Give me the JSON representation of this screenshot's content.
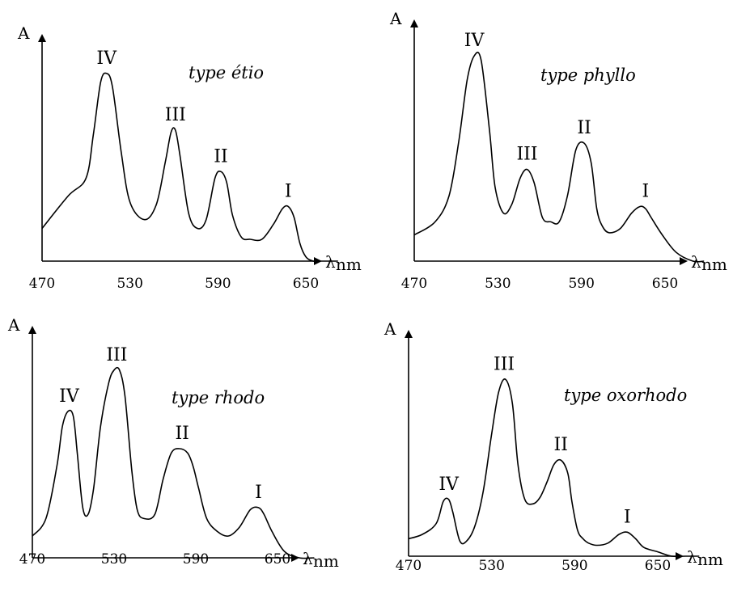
{
  "chart_data": [
    {
      "type": "line",
      "title": "type étio",
      "ylabel": "A",
      "xlabel": "λ",
      "xunit": "nm",
      "xticks": [
        "470",
        "530",
        "590",
        "650"
      ],
      "xlim": [
        470,
        672
      ],
      "ylim": [
        0,
        1
      ],
      "x": [
        470,
        488,
        500,
        505,
        510,
        514,
        518,
        524,
        530,
        540,
        548,
        554,
        558,
        561,
        564,
        570,
        576,
        582,
        588,
        592,
        596,
        600,
        606,
        612,
        620,
        628,
        634,
        638,
        642,
        646,
        650,
        655,
        660,
        672
      ],
      "y": [
        0.15,
        0.3,
        0.38,
        0.58,
        0.82,
        0.86,
        0.8,
        0.5,
        0.27,
        0.19,
        0.26,
        0.45,
        0.59,
        0.6,
        0.49,
        0.22,
        0.15,
        0.19,
        0.38,
        0.41,
        0.36,
        0.21,
        0.11,
        0.1,
        0.1,
        0.17,
        0.24,
        0.25,
        0.2,
        0.08,
        0.02,
        0.0,
        0.0,
        0.0
      ],
      "peaks": [
        {
          "label": "IV",
          "x": 514,
          "y": 0.86
        },
        {
          "label": "III",
          "x": 561,
          "y": 0.6
        },
        {
          "label": "II",
          "x": 592,
          "y": 0.41
        },
        {
          "label": "I",
          "x": 638,
          "y": 0.25
        }
      ]
    },
    {
      "type": "line",
      "title": "type phyllo",
      "ylabel": "A",
      "xlabel": "λ",
      "xunit": "nm",
      "xticks": [
        "470",
        "530",
        "590",
        "650"
      ],
      "xlim": [
        470,
        678
      ],
      "ylim": [
        0,
        1
      ],
      "x": [
        470,
        485,
        495,
        502,
        508,
        513,
        518,
        524,
        528,
        534,
        540,
        546,
        551,
        556,
        562,
        568,
        574,
        580,
        586,
        592,
        597,
        601,
        605,
        610,
        618,
        626,
        632,
        636,
        640,
        648,
        658,
        670,
        678
      ],
      "y": [
        0.12,
        0.18,
        0.3,
        0.55,
        0.83,
        0.94,
        0.92,
        0.6,
        0.34,
        0.22,
        0.26,
        0.38,
        0.42,
        0.36,
        0.2,
        0.18,
        0.18,
        0.3,
        0.51,
        0.54,
        0.45,
        0.24,
        0.16,
        0.13,
        0.15,
        0.22,
        0.25,
        0.24,
        0.2,
        0.12,
        0.04,
        0.0,
        0.0
      ],
      "peaks": [
        {
          "label": "IV",
          "x": 513,
          "y": 0.94
        },
        {
          "label": "III",
          "x": 551,
          "y": 0.42
        },
        {
          "label": "II",
          "x": 592,
          "y": 0.54
        },
        {
          "label": "I",
          "x": 636,
          "y": 0.25
        }
      ]
    },
    {
      "type": "line",
      "title": "type rhodo",
      "ylabel": "A",
      "xlabel": "λ",
      "xunit": "nm",
      "xticks": [
        "470",
        "530",
        "590",
        "650"
      ],
      "xlim": [
        470,
        677
      ],
      "ylim": [
        0,
        1
      ],
      "x": [
        470,
        480,
        488,
        492,
        496,
        500,
        503,
        507,
        511,
        515,
        520,
        526,
        530,
        534,
        538,
        543,
        547,
        552,
        560,
        566,
        572,
        578,
        584,
        588,
        592,
        598,
        606,
        614,
        622,
        630,
        636,
        640,
        646,
        655,
        666,
        677
      ],
      "y": [
        0.1,
        0.18,
        0.42,
        0.6,
        0.67,
        0.65,
        0.48,
        0.23,
        0.2,
        0.32,
        0.6,
        0.8,
        0.86,
        0.86,
        0.74,
        0.4,
        0.22,
        0.18,
        0.2,
        0.36,
        0.48,
        0.5,
        0.48,
        0.42,
        0.32,
        0.18,
        0.12,
        0.1,
        0.14,
        0.22,
        0.23,
        0.2,
        0.12,
        0.03,
        0.0,
        0.0
      ],
      "peaks": [
        {
          "label": "IV",
          "x": 497,
          "y": 0.67
        },
        {
          "label": "III",
          "x": 532,
          "y": 0.86
        },
        {
          "label": "II",
          "x": 580,
          "y": 0.5
        },
        {
          "label": "I",
          "x": 636,
          "y": 0.23
        }
      ]
    },
    {
      "type": "line",
      "title": "type oxorhodo",
      "ylabel": "A",
      "xlabel": "λ",
      "xunit": "nm",
      "xticks": [
        "470",
        "530",
        "590",
        "650"
      ],
      "xlim": [
        470,
        680
      ],
      "ylim": [
        0,
        1
      ],
      "x": [
        470,
        480,
        490,
        495,
        499,
        502,
        507,
        512,
        518,
        524,
        530,
        535,
        540,
        545,
        549,
        554,
        560,
        565,
        570,
        575,
        580,
        585,
        588,
        592,
        596,
        600,
        606,
        614,
        622,
        628,
        634,
        640,
        650,
        660,
        670,
        680
      ],
      "y": [
        0.08,
        0.1,
        0.15,
        0.25,
        0.26,
        0.2,
        0.07,
        0.07,
        0.14,
        0.3,
        0.56,
        0.75,
        0.81,
        0.7,
        0.42,
        0.26,
        0.24,
        0.27,
        0.34,
        0.42,
        0.44,
        0.38,
        0.25,
        0.12,
        0.08,
        0.06,
        0.05,
        0.06,
        0.1,
        0.11,
        0.08,
        0.04,
        0.02,
        0.0,
        0.0,
        0.0
      ],
      "peaks": [
        {
          "label": "IV",
          "x": 499,
          "y": 0.26
        },
        {
          "label": "III",
          "x": 539,
          "y": 0.81
        },
        {
          "label": "II",
          "x": 580,
          "y": 0.44
        },
        {
          "label": "I",
          "x": 628,
          "y": 0.11
        }
      ]
    }
  ]
}
